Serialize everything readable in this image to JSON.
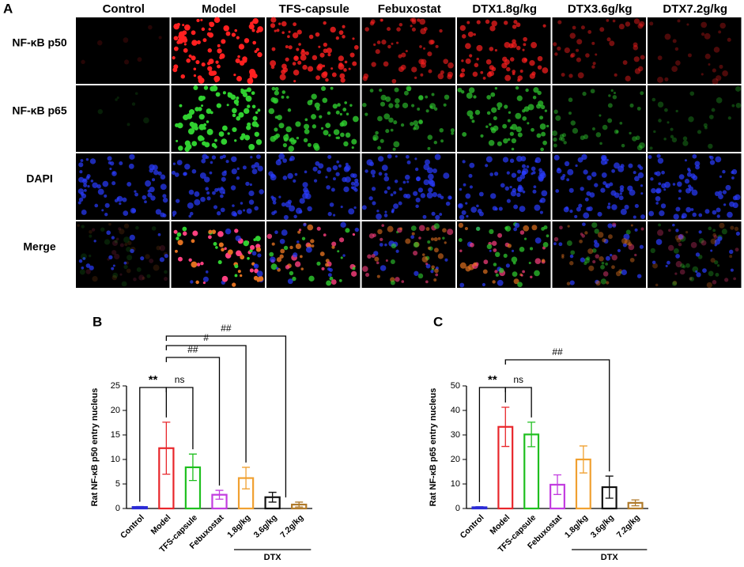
{
  "figure_a": {
    "label": "A",
    "columns": [
      "Control",
      "Model",
      "TFS-capsule",
      "Febuxostat",
      "DTX1.8g/kg",
      "DTX3.6g/kg",
      "DTX7.2g/kg"
    ],
    "rows": [
      "NF-κB p50",
      "NF-κB p65",
      "DAPI",
      "Merge"
    ]
  },
  "chart_data": [
    {
      "type": "bar",
      "panel_label": "B",
      "ylabel": "Rat NF-κB p50 entry nucleus",
      "categories": [
        "Control",
        "Model",
        "TFS-capsule",
        "Febuxostat",
        "1.8g/kg",
        "3.6g/kg",
        "7.2g/kg"
      ],
      "group_label": "DTX",
      "series": [
        {
          "values": [
            0.3,
            12.3,
            8.4,
            2.8,
            6.2,
            2.3,
            0.8
          ],
          "errors": [
            0.1,
            5.3,
            2.7,
            0.9,
            2.2,
            1.0,
            0.5
          ],
          "colors": [
            "#2b2bd6",
            "#e8262b",
            "#1fbf1f",
            "#c23ce0",
            "#f0a030",
            "#111111",
            "#b07a2a"
          ]
        }
      ],
      "ylim": [
        0,
        25
      ],
      "yticks": [
        0,
        5,
        10,
        15,
        20,
        25
      ],
      "annotations": [
        "**",
        "ns",
        "##",
        "#",
        "##"
      ]
    },
    {
      "type": "bar",
      "panel_label": "C",
      "ylabel": "Rat NF-κB p65 entry nucleus",
      "categories": [
        "Control",
        "Model",
        "TFS-capsule",
        "Febuxostat",
        "1.8g/kg",
        "3.6g/kg",
        "7.2g/kg"
      ],
      "group_label": "DTX",
      "series": [
        {
          "values": [
            0.5,
            33.3,
            30.2,
            9.7,
            20.0,
            8.7,
            2.3
          ],
          "errors": [
            0.2,
            8.0,
            5.0,
            4.0,
            5.5,
            4.5,
            1.2
          ],
          "colors": [
            "#2b2bd6",
            "#e8262b",
            "#1fbf1f",
            "#c23ce0",
            "#f0a030",
            "#111111",
            "#b07a2a"
          ]
        }
      ],
      "ylim": [
        0,
        50
      ],
      "yticks": [
        0,
        10,
        20,
        30,
        40,
        50
      ],
      "annotations": [
        "**",
        "ns",
        "##"
      ]
    }
  ]
}
